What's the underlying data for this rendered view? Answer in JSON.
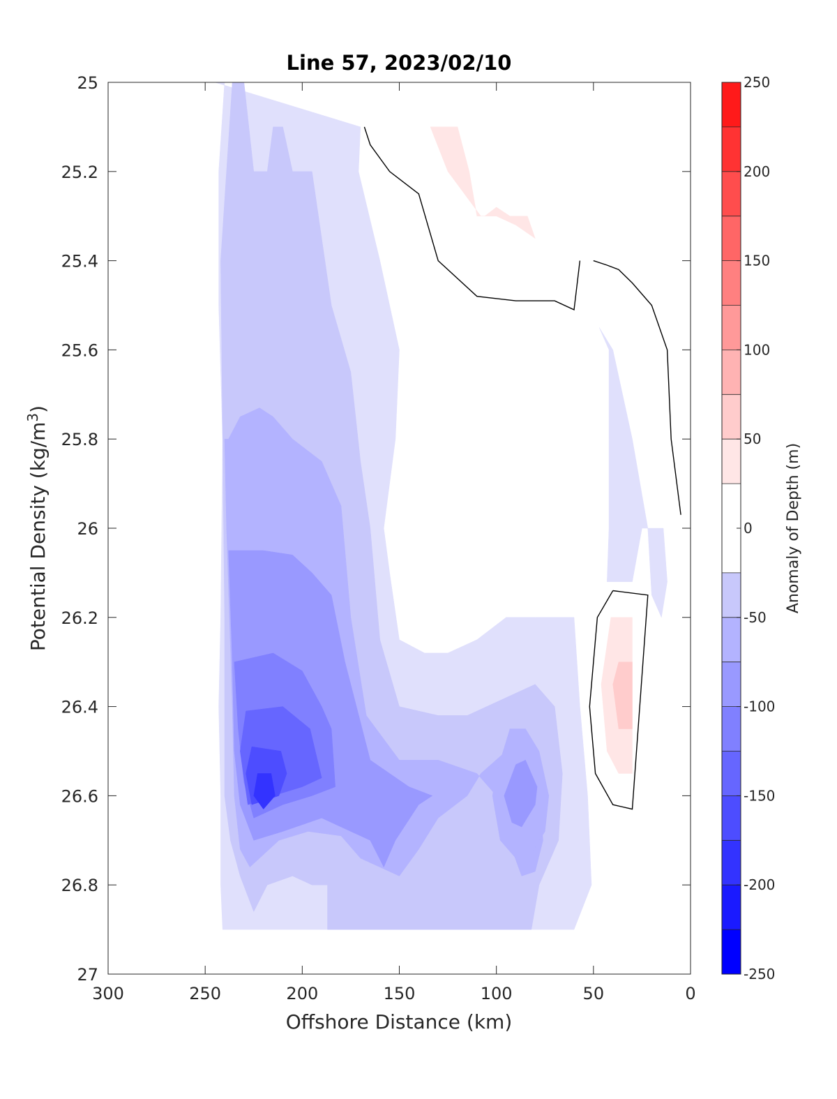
{
  "chart_data": {
    "type": "filled-contour",
    "title": "Line 57, 2023/02/10",
    "xlabel": "Offshore Distance (km)",
    "ylabel_prefix": "Potential Density (kg/m",
    "ylabel_sup": "3",
    "ylabel_suffix": ")",
    "x_axis": {
      "range": [
        300,
        0
      ],
      "reversed": true,
      "ticks": [
        300,
        250,
        200,
        150,
        100,
        50,
        0
      ],
      "tick_labels": [
        "300",
        "250",
        "200",
        "150",
        "100",
        "50",
        "0"
      ]
    },
    "y_axis": {
      "range": [
        25,
        27
      ],
      "reversed": true,
      "ticks": [
        25,
        25.2,
        25.4,
        25.6,
        25.8,
        26,
        26.2,
        26.4,
        26.6,
        26.8,
        27
      ],
      "tick_labels": [
        "25",
        "25.2",
        "25.4",
        "25.6",
        "25.8",
        "26",
        "26.2",
        "26.4",
        "26.6",
        "26.8",
        "27"
      ]
    },
    "colorbar": {
      "label": "Anomaly of Depth (m)",
      "range": [
        -250,
        250
      ],
      "levels": [
        -250,
        -225,
        -200,
        -175,
        -150,
        -125,
        -100,
        -75,
        -50,
        -25,
        25,
        50,
        75,
        100,
        125,
        150,
        175,
        200,
        225,
        250
      ],
      "tick_values": [
        -250,
        -200,
        -150,
        -100,
        -50,
        0,
        50,
        100,
        150,
        200,
        250
      ],
      "tick_labels": [
        "-250",
        "-200",
        "-150",
        "-100",
        "-50",
        "0",
        "50",
        "100",
        "150",
        "200",
        "250"
      ],
      "bands": [
        {
          "from": -250,
          "to": -225,
          "color": "#0000ff"
        },
        {
          "from": -225,
          "to": -200,
          "color": "#1a1aff"
        },
        {
          "from": -200,
          "to": -175,
          "color": "#3333ff"
        },
        {
          "from": -175,
          "to": -150,
          "color": "#4d4dff"
        },
        {
          "from": -150,
          "to": -125,
          "color": "#6666ff"
        },
        {
          "from": -125,
          "to": -100,
          "color": "#8080ff"
        },
        {
          "from": -100,
          "to": -75,
          "color": "#9999ff"
        },
        {
          "from": -75,
          "to": -50,
          "color": "#b3b3ff"
        },
        {
          "from": -50,
          "to": -25,
          "color": "#c8c8fb"
        },
        {
          "from": -25,
          "to": 25,
          "color": "#ffffff"
        },
        {
          "from": 25,
          "to": 50,
          "color": "#ffe6e6"
        },
        {
          "from": 50,
          "to": 75,
          "color": "#ffcccc"
        },
        {
          "from": 75,
          "to": 100,
          "color": "#ffb3b3"
        },
        {
          "from": 100,
          "to": 125,
          "color": "#ff9999"
        },
        {
          "from": 125,
          "to": 150,
          "color": "#ff8080"
        },
        {
          "from": 150,
          "to": 175,
          "color": "#ff6666"
        },
        {
          "from": 175,
          "to": 200,
          "color": "#ff4d4d"
        },
        {
          "from": 200,
          "to": 225,
          "color": "#ff3333"
        },
        {
          "from": 225,
          "to": 250,
          "color": "#ff1a1a"
        },
        {
          "from": 250,
          "to": 275,
          "color": "#ff0000"
        }
      ]
    },
    "contour_regions": [
      {
        "level": -25,
        "color": "#e0e0fc",
        "points": [
          [
            245,
            25.0
          ],
          [
            240,
            25.0
          ],
          [
            243,
            25.2
          ],
          [
            243,
            25.5
          ],
          [
            241,
            25.8
          ],
          [
            242,
            26.2
          ],
          [
            243,
            26.4
          ],
          [
            242,
            26.6
          ],
          [
            242,
            26.8
          ],
          [
            241,
            26.9
          ],
          [
            60,
            26.9
          ],
          [
            51,
            26.8
          ],
          [
            53,
            26.6
          ],
          [
            57,
            26.4
          ],
          [
            60,
            26.2
          ],
          [
            80,
            26.2
          ],
          [
            95,
            26.2
          ],
          [
            110,
            26.25
          ],
          [
            125,
            26.28
          ],
          [
            137,
            26.28
          ],
          [
            150,
            26.25
          ],
          [
            155,
            26.1
          ],
          [
            158,
            26.0
          ],
          [
            152,
            25.8
          ],
          [
            150,
            25.6
          ],
          [
            160,
            25.4
          ],
          [
            171,
            25.2
          ],
          [
            170,
            25.1
          ],
          [
            245,
            25.0
          ]
        ]
      },
      {
        "level": -25,
        "color": "#e0e0fc",
        "points": [
          [
            47,
            25.55
          ],
          [
            42,
            25.6
          ],
          [
            42,
            25.8
          ],
          [
            42,
            26.0
          ],
          [
            43,
            26.12
          ],
          [
            30,
            26.12
          ],
          [
            25,
            26.0
          ],
          [
            14,
            26.0
          ],
          [
            12,
            26.12
          ],
          [
            15,
            26.2
          ],
          [
            20,
            26.15
          ],
          [
            22,
            26.0
          ],
          [
            30,
            25.8
          ],
          [
            40,
            25.6
          ],
          [
            47,
            25.55
          ]
        ]
      },
      {
        "level": -50,
        "color": "#c8c8fb",
        "points": [
          [
            236,
            25.0
          ],
          [
            242,
            25.4
          ],
          [
            241,
            25.8
          ],
          [
            240,
            26.2
          ],
          [
            240,
            26.4
          ],
          [
            240,
            26.6
          ],
          [
            237,
            26.7
          ],
          [
            232,
            26.78
          ],
          [
            225,
            26.86
          ],
          [
            218,
            26.8
          ],
          [
            205,
            26.78
          ],
          [
            195,
            26.8
          ],
          [
            187,
            26.8
          ],
          [
            187,
            26.9
          ],
          [
            82,
            26.9
          ],
          [
            78,
            26.8
          ],
          [
            68,
            26.7
          ],
          [
            66,
            26.55
          ],
          [
            70,
            26.4
          ],
          [
            80,
            26.35
          ],
          [
            95,
            26.38
          ],
          [
            115,
            26.42
          ],
          [
            130,
            26.42
          ],
          [
            150,
            26.4
          ],
          [
            160,
            26.25
          ],
          [
            165,
            26.0
          ],
          [
            170,
            25.85
          ],
          [
            175,
            25.65
          ],
          [
            185,
            25.5
          ],
          [
            195,
            25.2
          ],
          [
            205,
            25.2
          ],
          [
            210,
            25.1
          ],
          [
            215,
            25.1
          ],
          [
            218,
            25.2
          ],
          [
            225,
            25.2
          ],
          [
            230,
            25.0
          ],
          [
            236,
            25.0
          ]
        ]
      },
      {
        "level": -75,
        "color": "#b3b3ff",
        "points": [
          [
            240,
            25.8
          ],
          [
            239,
            26.0
          ],
          [
            236,
            26.4
          ],
          [
            235,
            26.6
          ],
          [
            232,
            26.72
          ],
          [
            227,
            26.76
          ],
          [
            222,
            26.74
          ],
          [
            212,
            26.7
          ],
          [
            197,
            26.68
          ],
          [
            180,
            26.69
          ],
          [
            170,
            26.74
          ],
          [
            150,
            26.78
          ],
          [
            140,
            26.72
          ],
          [
            130,
            26.65
          ],
          [
            115,
            26.6
          ],
          [
            108,
            26.55
          ],
          [
            95,
            26.5
          ],
          [
            88,
            26.48
          ],
          [
            78,
            26.6
          ],
          [
            76,
            26.7
          ],
          [
            80,
            26.77
          ],
          [
            87,
            26.78
          ],
          [
            92,
            26.72
          ],
          [
            95,
            26.65
          ],
          [
            100,
            26.6
          ],
          [
            110,
            26.55
          ],
          [
            130,
            26.52
          ],
          [
            150,
            26.52
          ],
          [
            167,
            26.42
          ],
          [
            175,
            26.2
          ],
          [
            180,
            25.95
          ],
          [
            190,
            25.85
          ],
          [
            205,
            25.8
          ],
          [
            215,
            25.75
          ],
          [
            222,
            25.73
          ],
          [
            232,
            25.75
          ],
          [
            238,
            25.8
          ],
          [
            240,
            25.8
          ]
        ]
      },
      {
        "level": -75,
        "color": "#b3b3ff",
        "points": [
          [
            93,
            26.45
          ],
          [
            100,
            26.55
          ],
          [
            102,
            26.6
          ],
          [
            98,
            26.7
          ],
          [
            90,
            26.74
          ],
          [
            82,
            26.73
          ],
          [
            75,
            26.68
          ],
          [
            73,
            26.6
          ],
          [
            78,
            26.5
          ],
          [
            85,
            26.45
          ],
          [
            93,
            26.45
          ]
        ]
      },
      {
        "level": -100,
        "color": "#9999ff",
        "points": [
          [
            238,
            26.05
          ],
          [
            236,
            26.3
          ],
          [
            235,
            26.5
          ],
          [
            232,
            26.62
          ],
          [
            225,
            26.7
          ],
          [
            210,
            26.68
          ],
          [
            190,
            26.65
          ],
          [
            175,
            26.68
          ],
          [
            165,
            26.7
          ],
          [
            158,
            26.76
          ],
          [
            152,
            26.7
          ],
          [
            140,
            26.62
          ],
          [
            133,
            26.6
          ],
          [
            145,
            26.58
          ],
          [
            165,
            26.52
          ],
          [
            178,
            26.3
          ],
          [
            185,
            26.15
          ],
          [
            195,
            26.1
          ],
          [
            205,
            26.06
          ],
          [
            220,
            26.05
          ],
          [
            238,
            26.05
          ]
        ]
      },
      {
        "level": -100,
        "color": "#9999ff",
        "points": [
          [
            90,
            26.53
          ],
          [
            96,
            26.6
          ],
          [
            92,
            26.66
          ],
          [
            87,
            26.67
          ],
          [
            80,
            26.62
          ],
          [
            79,
            26.58
          ],
          [
            85,
            26.52
          ],
          [
            90,
            26.53
          ]
        ]
      },
      {
        "level": -125,
        "color": "#8080ff",
        "points": [
          [
            235,
            26.3
          ],
          [
            233,
            26.45
          ],
          [
            230,
            26.57
          ],
          [
            225,
            26.65
          ],
          [
            210,
            26.62
          ],
          [
            195,
            26.6
          ],
          [
            183,
            26.58
          ],
          [
            185,
            26.45
          ],
          [
            190,
            26.4
          ],
          [
            200,
            26.32
          ],
          [
            215,
            26.28
          ],
          [
            235,
            26.3
          ]
        ]
      },
      {
        "level": -150,
        "color": "#6666ff",
        "points": [
          [
            229,
            26.41
          ],
          [
            232,
            26.5
          ],
          [
            228,
            26.62
          ],
          [
            215,
            26.6
          ],
          [
            200,
            26.58
          ],
          [
            190,
            26.56
          ],
          [
            196,
            26.45
          ],
          [
            210,
            26.4
          ],
          [
            229,
            26.41
          ]
        ]
      },
      {
        "level": -175,
        "color": "#4d4dff",
        "points": [
          [
            226,
            26.49
          ],
          [
            229,
            26.55
          ],
          [
            226,
            26.62
          ],
          [
            212,
            26.6
          ],
          [
            208,
            26.55
          ],
          [
            211,
            26.5
          ],
          [
            226,
            26.49
          ]
        ]
      },
      {
        "level": -200,
        "color": "#3333ff",
        "points": [
          [
            223,
            26.55
          ],
          [
            225,
            26.6
          ],
          [
            220,
            26.63
          ],
          [
            214,
            26.6
          ],
          [
            216,
            26.55
          ],
          [
            223,
            26.55
          ]
        ]
      },
      {
        "level": 25,
        "color": "#ffe6e6",
        "points": [
          [
            134,
            25.1
          ],
          [
            120,
            25.1
          ],
          [
            114,
            25.2
          ],
          [
            110,
            25.3
          ],
          [
            106,
            25.3
          ],
          [
            100,
            25.28
          ],
          [
            93,
            25.3
          ],
          [
            84,
            25.3
          ],
          [
            80,
            25.35
          ],
          [
            90,
            25.32
          ],
          [
            100,
            25.3
          ],
          [
            108,
            25.3
          ],
          [
            125,
            25.2
          ],
          [
            134,
            25.1
          ]
        ]
      },
      {
        "level": 25,
        "color": "#ffe6e6",
        "points": [
          [
            41,
            26.2
          ],
          [
            46,
            26.35
          ],
          [
            43,
            26.5
          ],
          [
            37,
            26.55
          ],
          [
            30,
            26.55
          ],
          [
            30,
            26.2
          ],
          [
            41,
            26.2
          ]
        ]
      },
      {
        "level": 50,
        "color": "#ffcccc",
        "points": [
          [
            37,
            26.3
          ],
          [
            40,
            26.35
          ],
          [
            37,
            26.45
          ],
          [
            30,
            26.45
          ],
          [
            30,
            26.3
          ],
          [
            37,
            26.3
          ]
        ]
      }
    ],
    "zero_contours": [
      {
        "points": [
          [
            168,
            25.1
          ],
          [
            165,
            25.14
          ],
          [
            155,
            25.2
          ],
          [
            140,
            25.25
          ],
          [
            130,
            25.4
          ],
          [
            110,
            25.48
          ],
          [
            90,
            25.49
          ],
          [
            70,
            25.49
          ],
          [
            60,
            25.51
          ],
          [
            57,
            25.4
          ]
        ]
      },
      {
        "points": [
          [
            50,
            25.4
          ],
          [
            43,
            25.41
          ],
          [
            37,
            25.42
          ],
          [
            30,
            25.45
          ],
          [
            20,
            25.5
          ],
          [
            12,
            25.6
          ],
          [
            10,
            25.8
          ],
          [
            5,
            25.97
          ]
        ]
      },
      {
        "points": [
          [
            40,
            26.14
          ],
          [
            48,
            26.2
          ],
          [
            52,
            26.4
          ],
          [
            49,
            26.55
          ],
          [
            40,
            26.62
          ],
          [
            30,
            26.63
          ],
          [
            22,
            26.15
          ],
          [
            40,
            26.14
          ]
        ]
      }
    ]
  }
}
